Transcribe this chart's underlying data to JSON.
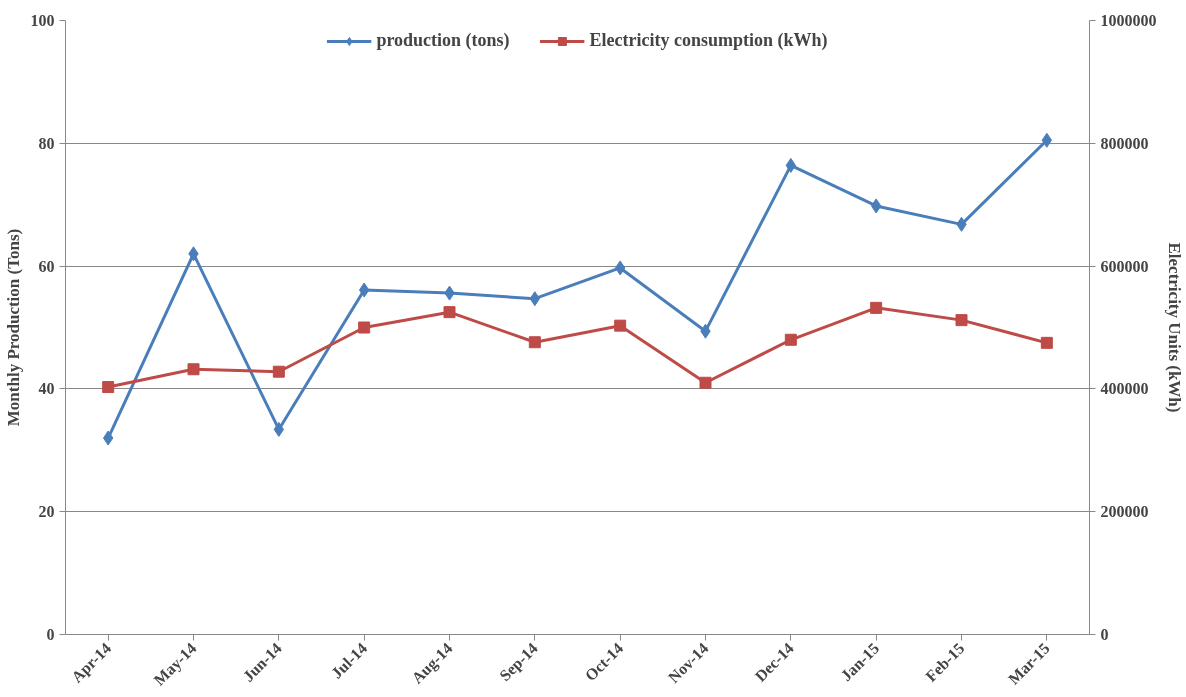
{
  "chart_data": {
    "type": "line",
    "ylabel": "Monthly Production (Tons)",
    "y2label": "Electricity Units (kWh)",
    "categories": [
      "Apr-14",
      "May-14",
      "Jun-14",
      "Jul-14",
      "Aug-14",
      "Sep-14",
      "Oct-14",
      "Nov-14",
      "Dec-14",
      "Jan-15",
      "Feb-15",
      "Mar-15"
    ],
    "series": [
      {
        "name": "production (tons)",
        "color": "#4a7ebb",
        "marker": "diamond",
        "values": [
          32,
          62,
          33.4,
          56.1,
          55.6,
          54.7,
          59.7,
          49.4,
          76.4,
          69.8,
          66.8,
          80.5
        ]
      },
      {
        "name": "Electricity consumption (kWh)",
        "color": "#be4b48",
        "marker": "square",
        "axis": "y2",
        "values": [
          403000,
          432000,
          428000,
          500000,
          525000,
          476000,
          503000,
          410000,
          480000,
          532000,
          512000,
          475000
        ]
      }
    ],
    "ylim": [
      0,
      100
    ],
    "yticks": [
      0,
      20,
      40,
      60,
      80,
      100
    ],
    "y2lim": [
      0,
      1000000
    ],
    "y2ticks": [
      0,
      200000,
      400000,
      600000,
      800000,
      1000000
    ],
    "grid": "y",
    "legend": "top"
  }
}
